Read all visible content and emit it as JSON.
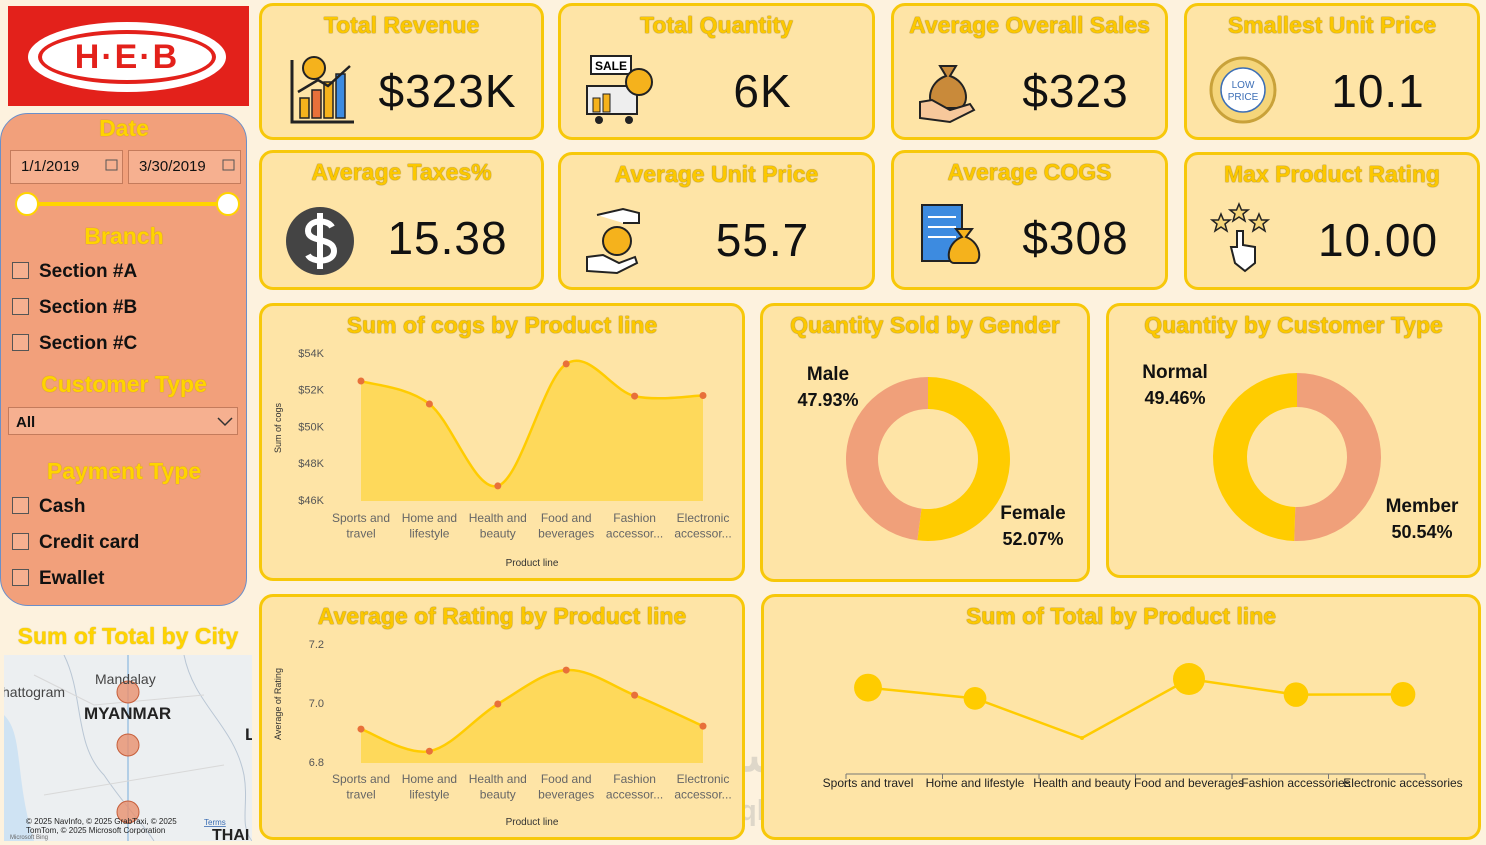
{
  "sidebar": {
    "logo": "H·E·B",
    "date": {
      "title": "Date",
      "start": "1/1/2019",
      "end": "3/30/2019"
    },
    "branch": {
      "title": "Branch",
      "options": [
        "Section #A",
        "Section #B",
        "Section #C"
      ]
    },
    "customer_type": {
      "title": "Customer Type",
      "selected": "All"
    },
    "payment_type": {
      "title": "Payment Type",
      "options": [
        "Cash",
        "Credit card",
        "Ewallet"
      ]
    }
  },
  "map": {
    "title": "Sum of Total by City",
    "labels": [
      "hattogram",
      "Mandalay",
      "MYANMAR",
      "L",
      "THAI"
    ],
    "attribution": "© 2025 NavInfo, © 2025 GrabTaxi, © 2025 TomTom, © 2025 Microsoft Corporation",
    "terms": "Terms",
    "provider": "Microsoft Bing"
  },
  "kpis": [
    {
      "title": "Total Revenue",
      "value": "$323K"
    },
    {
      "title": "Total Quantity",
      "value": "6K",
      "badge": [
        "SALE"
      ]
    },
    {
      "title": "Average Overall Sales",
      "value": "$323"
    },
    {
      "title": "Smallest Unit Price",
      "value": "10.1",
      "badge": [
        "LOW",
        "PRICE"
      ]
    },
    {
      "title": "Average Taxes%",
      "value": "15.38"
    },
    {
      "title": "Average Unit Price",
      "value": "55.7"
    },
    {
      "title": "Average COGS",
      "value": "$308"
    },
    {
      "title": "Max Product Rating",
      "value": "10.00"
    }
  ],
  "chart_data": [
    {
      "type": "area",
      "title": "Sum of cogs by Product line",
      "x_label": "Product line",
      "y_label": "Sum of cogs",
      "categories": [
        "Sports and travel",
        "Home and lifestyle",
        "Health and beauty",
        "Food and beverages",
        "Fashion accessor...",
        "Electronic accessor..."
      ],
      "values": [
        52530,
        51280,
        46820,
        53460,
        51710,
        51740
      ],
      "color": "#ffcc00",
      "point_color": "#e8703a",
      "ylim": [
        46000,
        54000
      ],
      "yticks": [
        {
          "value": 46000,
          "label": "$46K"
        },
        {
          "value": 48000,
          "label": "$48K"
        },
        {
          "value": 50000,
          "label": "$50K"
        },
        {
          "value": 52000,
          "label": "$52K"
        },
        {
          "value": 54000,
          "label": "$54K"
        }
      ]
    },
    {
      "type": "donut",
      "title": "Quantity Sold by Gender",
      "categories": [
        "Female",
        "Male"
      ],
      "values": [
        52.07,
        47.93
      ],
      "value_labels": [
        "52.07%",
        "47.93%"
      ],
      "colors": [
        "#ffcc00",
        "#f0a07a"
      ]
    },
    {
      "type": "donut",
      "title": "Quantity by Customer Type",
      "categories": [
        "Member",
        "Normal"
      ],
      "values": [
        50.54,
        49.46
      ],
      "value_labels": [
        "50.54%",
        "49.46%"
      ],
      "colors": [
        "#f0a07a",
        "#ffcc00"
      ]
    },
    {
      "type": "area",
      "title": "Average of Rating by Product line",
      "x_label": "Product line",
      "y_label": "Average of Rating",
      "categories": [
        "Sports and travel",
        "Home and lifestyle",
        "Health and beauty",
        "Food and beverages",
        "Fashion accessor...",
        "Electronic accessor..."
      ],
      "values": [
        6.915,
        6.84,
        7.0,
        7.115,
        7.03,
        6.925
      ],
      "color": "#ffcc00",
      "point_color": "#e8703a",
      "ylim": [
        6.8,
        7.2
      ],
      "yticks": [
        6.8,
        {
          "value": 7.0,
          "label": "7.0"
        },
        7.2
      ]
    },
    {
      "type": "line",
      "title": "Sum of Total by Product line",
      "categories": [
        "Sports and travel",
        "Home and lifestyle",
        "Health and beauty",
        "Food and beverages",
        "Fashion accessories",
        "Electronic accessories"
      ],
      "values": [
        55123,
        53862,
        49194,
        56145,
        54306,
        54338
      ],
      "color": "#ffcc00"
    }
  ],
  "watermark": {
    "arabic": "مستقل",
    "latin": "mostaql.com"
  }
}
